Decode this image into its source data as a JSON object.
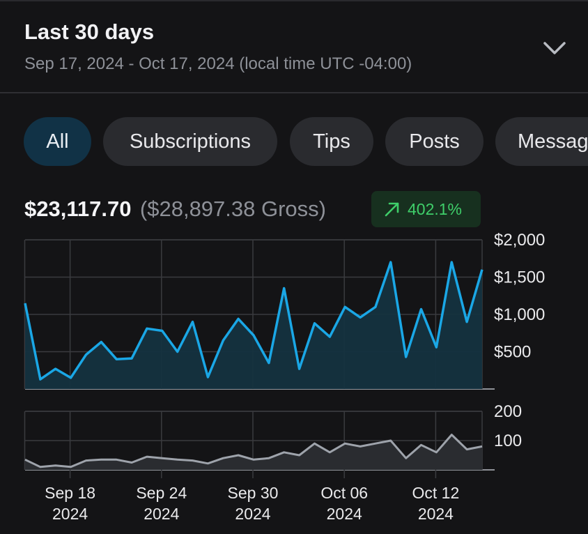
{
  "header": {
    "title": "Last 30 days",
    "range": "Sep 17, 2024 - Oct 17, 2024 (local time UTC -04:00)",
    "dropdown_icon": "chevron-down-icon"
  },
  "filters": [
    {
      "label": "All",
      "active": true
    },
    {
      "label": "Subscriptions",
      "active": false
    },
    {
      "label": "Tips",
      "active": false
    },
    {
      "label": "Posts",
      "active": false
    },
    {
      "label": "Messages",
      "active": false
    }
  ],
  "summary": {
    "net": "$23,117.70",
    "gross": "($28,897.38 Gross)",
    "change": "402.1%",
    "change_icon": "trend-up-arrow-icon"
  },
  "colors": {
    "accent_line": "#1aa7e6",
    "accent_fill": "#14323f",
    "count_line": "#9ea3ab",
    "count_fill": "#2a2c30",
    "positive": "#3fcf6a"
  },
  "chart_data": [
    {
      "type": "area",
      "series": [
        {
          "values": [
            1150,
            130,
            270,
            150,
            460,
            630,
            400,
            410,
            810,
            780,
            500,
            900,
            160,
            650,
            940,
            720,
            350,
            1350,
            270,
            880,
            700,
            1100,
            960,
            1100,
            1700,
            430,
            1070,
            560,
            1700,
            900,
            1600
          ]
        }
      ],
      "x_start": "2024-09-15",
      "x_end": "2024-10-15",
      "x_ticks": [
        {
          "line1": "Sep 18",
          "line2": "2024"
        },
        {
          "line1": "Sep 24",
          "line2": "2024"
        },
        {
          "line1": "Sep 30",
          "line2": "2024"
        },
        {
          "line1": "Oct 06",
          "line2": "2024"
        },
        {
          "line1": "Oct 12",
          "line2": "2024"
        }
      ],
      "ylim": [
        0,
        2000
      ],
      "y_ticks": [
        "$2,000",
        "$1,500",
        "$1,000",
        "$500"
      ],
      "grid": true
    },
    {
      "type": "area",
      "series": [
        {
          "values": [
            35,
            10,
            15,
            10,
            32,
            35,
            35,
            25,
            45,
            40,
            35,
            32,
            22,
            40,
            50,
            35,
            40,
            60,
            50,
            90,
            60,
            90,
            80,
            90,
            100,
            40,
            85,
            60,
            120,
            70,
            80
          ]
        }
      ],
      "ylim": [
        0,
        200
      ],
      "y_ticks": [
        "200",
        "100"
      ],
      "grid": true
    }
  ]
}
